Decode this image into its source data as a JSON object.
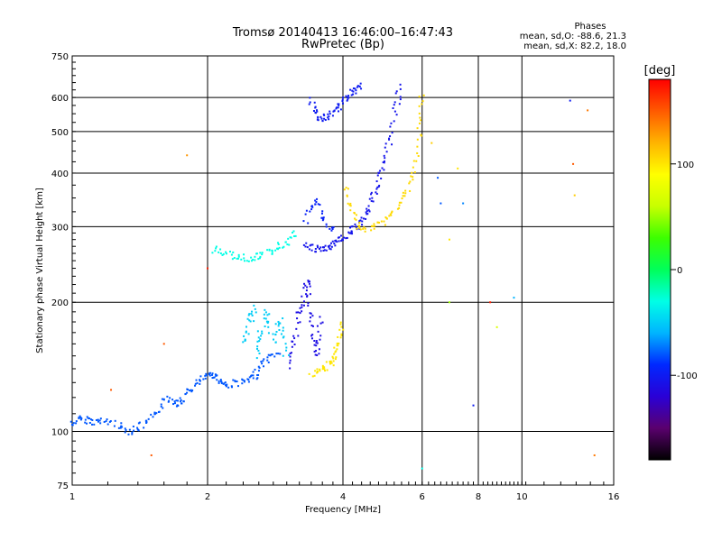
{
  "chart_data": {
    "type": "scatter",
    "title": "Tromsø 20140413 16:46:00–16:47:43",
    "subtitle": "RwPretec (Bp)",
    "xlabel": "Frequency [MHz]",
    "ylabel": "Stationary phase Virtual Height [km]",
    "x_scale": "log",
    "y_scale": "log",
    "xlim": [
      1,
      16
    ],
    "ylim": [
      75,
      750
    ],
    "x_ticks": [
      {
        "value": 1,
        "label": "1"
      },
      {
        "value": 2,
        "label": "2"
      },
      {
        "value": 4,
        "label": "4"
      },
      {
        "value": 6,
        "label": "6"
      },
      {
        "value": 8,
        "label": "8"
      },
      {
        "value": 10,
        "label": "10"
      },
      {
        "value": 16,
        "label": "16"
      }
    ],
    "y_ticks": [
      {
        "value": 75,
        "label": "75"
      },
      {
        "value": 100,
        "label": "100"
      },
      {
        "value": 200,
        "label": "200"
      },
      {
        "value": 300,
        "label": "300"
      },
      {
        "value": 400,
        "label": "400"
      },
      {
        "value": 500,
        "label": "500"
      },
      {
        "value": 600,
        "label": "600"
      },
      {
        "value": 750,
        "label": "750"
      }
    ],
    "grid": true,
    "stats": {
      "header": "Phases",
      "line_o": "mean, sd,O: -88.6, 21.3",
      "line_x": "mean, sd,X:  82.2, 18.0"
    },
    "colorbar": {
      "label": "[deg]",
      "range": [
        -180,
        180
      ],
      "ticks": [
        {
          "value": 100,
          "label": "100"
        },
        {
          "value": 0,
          "label": "0"
        },
        {
          "value": -100,
          "label": "-100"
        }
      ],
      "stops": [
        "#000000",
        "#5a006e",
        "#2a00d6",
        "#0028ff",
        "#00b4ff",
        "#00ffe6",
        "#00ff5a",
        "#3cff00",
        "#c8ff00",
        "#ffff00",
        "#ffb400",
        "#ff5a00",
        "#ff0000"
      ]
    },
    "series": [
      {
        "phase": -80,
        "points": [
          [
            1.0,
            104
          ],
          [
            1.03,
            106
          ],
          [
            1.06,
            107
          ],
          [
            1.1,
            106
          ],
          [
            1.14,
            105
          ],
          [
            1.18,
            106
          ],
          [
            1.25,
            104
          ],
          [
            1.3,
            102
          ],
          [
            1.36,
            100
          ],
          [
            1.4,
            102
          ],
          [
            1.46,
            104
          ],
          [
            1.52,
            108
          ],
          [
            1.58,
            114
          ],
          [
            1.63,
            120
          ],
          [
            1.68,
            118
          ],
          [
            1.72,
            116
          ],
          [
            1.76,
            119
          ],
          [
            1.82,
            124
          ],
          [
            1.88,
            128
          ],
          [
            1.94,
            132
          ],
          [
            2.0,
            134
          ],
          [
            2.05,
            136
          ],
          [
            2.1,
            134
          ],
          [
            2.15,
            130
          ],
          [
            2.2,
            128
          ],
          [
            2.3,
            130
          ],
          [
            2.4,
            130
          ],
          [
            2.5,
            132
          ],
          [
            2.55,
            135
          ],
          [
            2.6,
            140
          ],
          [
            2.7,
            146
          ],
          [
            2.8,
            150
          ],
          [
            2.9,
            154
          ]
        ]
      },
      {
        "phase": -50,
        "points": [
          [
            2.4,
            160
          ],
          [
            2.45,
            170
          ],
          [
            2.5,
            185
          ],
          [
            2.52,
            195
          ],
          [
            2.6,
            150
          ],
          [
            2.62,
            165
          ],
          [
            2.7,
            180
          ],
          [
            2.72,
            190
          ],
          [
            2.8,
            160
          ],
          [
            2.85,
            175
          ],
          [
            2.9,
            180
          ],
          [
            2.95,
            165
          ],
          [
            3.0,
            145
          ]
        ]
      },
      {
        "phase": -110,
        "points": [
          [
            3.05,
            140
          ],
          [
            3.1,
            155
          ],
          [
            3.15,
            170
          ],
          [
            3.2,
            190
          ],
          [
            3.25,
            200
          ],
          [
            3.3,
            215
          ],
          [
            3.35,
            225
          ],
          [
            3.38,
            195
          ],
          [
            3.42,
            175
          ],
          [
            3.45,
            160
          ],
          [
            3.5,
            150
          ],
          [
            3.55,
            170
          ],
          [
            3.58,
            185
          ]
        ]
      },
      {
        "phase": 100,
        "points": [
          [
            3.4,
            135
          ],
          [
            3.5,
            138
          ],
          [
            3.6,
            140
          ],
          [
            3.7,
            142
          ],
          [
            3.8,
            145
          ],
          [
            3.85,
            150
          ],
          [
            3.9,
            160
          ],
          [
            3.95,
            170
          ],
          [
            4.0,
            180
          ]
        ]
      },
      {
        "phase": -30,
        "points": [
          [
            2.05,
            265
          ],
          [
            2.15,
            262
          ],
          [
            2.25,
            258
          ],
          [
            2.35,
            255
          ],
          [
            2.45,
            253
          ],
          [
            2.55,
            255
          ],
          [
            2.65,
            258
          ],
          [
            2.75,
            262
          ],
          [
            2.85,
            268
          ],
          [
            2.95,
            272
          ],
          [
            3.05,
            282
          ],
          [
            3.15,
            290
          ]
        ]
      },
      {
        "phase": -105,
        "points": [
          [
            3.3,
            272
          ],
          [
            3.4,
            268
          ],
          [
            3.5,
            266
          ],
          [
            3.6,
            266
          ],
          [
            3.7,
            268
          ],
          [
            3.8,
            272
          ],
          [
            3.9,
            276
          ],
          [
            4.0,
            282
          ],
          [
            4.1,
            288
          ],
          [
            4.2,
            294
          ],
          [
            4.3,
            300
          ],
          [
            4.4,
            310
          ],
          [
            4.5,
            322
          ],
          [
            4.6,
            340
          ],
          [
            4.7,
            360
          ],
          [
            4.8,
            385
          ],
          [
            4.9,
            410
          ],
          [
            5.0,
            440
          ],
          [
            5.1,
            480
          ],
          [
            5.2,
            540
          ],
          [
            5.3,
            600
          ],
          [
            5.35,
            640
          ]
        ]
      },
      {
        "phase": -95,
        "points": [
          [
            3.3,
            310
          ],
          [
            3.4,
            330
          ],
          [
            3.5,
            345
          ],
          [
            3.6,
            320
          ],
          [
            3.7,
            300
          ],
          [
            3.8,
            290
          ]
        ]
      },
      {
        "phase": 105,
        "points": [
          [
            4.05,
            370
          ],
          [
            4.15,
            340
          ],
          [
            4.25,
            315
          ],
          [
            4.35,
            300
          ],
          [
            4.5,
            295
          ],
          [
            4.7,
            300
          ],
          [
            4.9,
            308
          ],
          [
            5.1,
            318
          ],
          [
            5.3,
            335
          ],
          [
            5.5,
            355
          ],
          [
            5.7,
            385
          ],
          [
            5.8,
            420
          ],
          [
            5.9,
            480
          ],
          [
            5.95,
            550
          ],
          [
            6.0,
            620
          ]
        ]
      },
      {
        "phase": -100,
        "points": [
          [
            3.4,
            590
          ],
          [
            3.45,
            560
          ],
          [
            3.5,
            540
          ],
          [
            3.6,
            535
          ],
          [
            3.7,
            540
          ],
          [
            3.8,
            555
          ],
          [
            3.9,
            570
          ],
          [
            4.0,
            585
          ],
          [
            4.1,
            600
          ],
          [
            4.2,
            615
          ],
          [
            4.3,
            630
          ],
          [
            4.4,
            645
          ]
        ]
      }
    ],
    "scatter_points": [
      {
        "x": 1.8,
        "y": 440,
        "phase": 130
      },
      {
        "x": 1.5,
        "y": 88,
        "phase": 150
      },
      {
        "x": 1.22,
        "y": 125,
        "phase": 150
      },
      {
        "x": 1.6,
        "y": 160,
        "phase": 150
      },
      {
        "x": 2.0,
        "y": 240,
        "phase": 170
      },
      {
        "x": 7.2,
        "y": 410,
        "phase": 100
      },
      {
        "x": 7.4,
        "y": 340,
        "phase": -70
      },
      {
        "x": 7.8,
        "y": 115,
        "phase": -100
      },
      {
        "x": 8.5,
        "y": 200,
        "phase": 170
      },
      {
        "x": 8.8,
        "y": 175,
        "phase": 70
      },
      {
        "x": 9.6,
        "y": 205,
        "phase": -60
      },
      {
        "x": 12.8,
        "y": 590,
        "phase": -100
      },
      {
        "x": 13.0,
        "y": 420,
        "phase": 150
      },
      {
        "x": 14.0,
        "y": 560,
        "phase": 140
      },
      {
        "x": 14.5,
        "y": 88,
        "phase": 140
      },
      {
        "x": 13.1,
        "y": 355,
        "phase": 110
      },
      {
        "x": 6.3,
        "y": 470,
        "phase": 110
      },
      {
        "x": 6.9,
        "y": 280,
        "phase": 100
      },
      {
        "x": 6.9,
        "y": 200,
        "phase": 50
      },
      {
        "x": 6.0,
        "y": 82,
        "phase": -30
      },
      {
        "x": 6.6,
        "y": 340,
        "phase": -80
      },
      {
        "x": 6.5,
        "y": 390,
        "phase": -80
      }
    ]
  }
}
